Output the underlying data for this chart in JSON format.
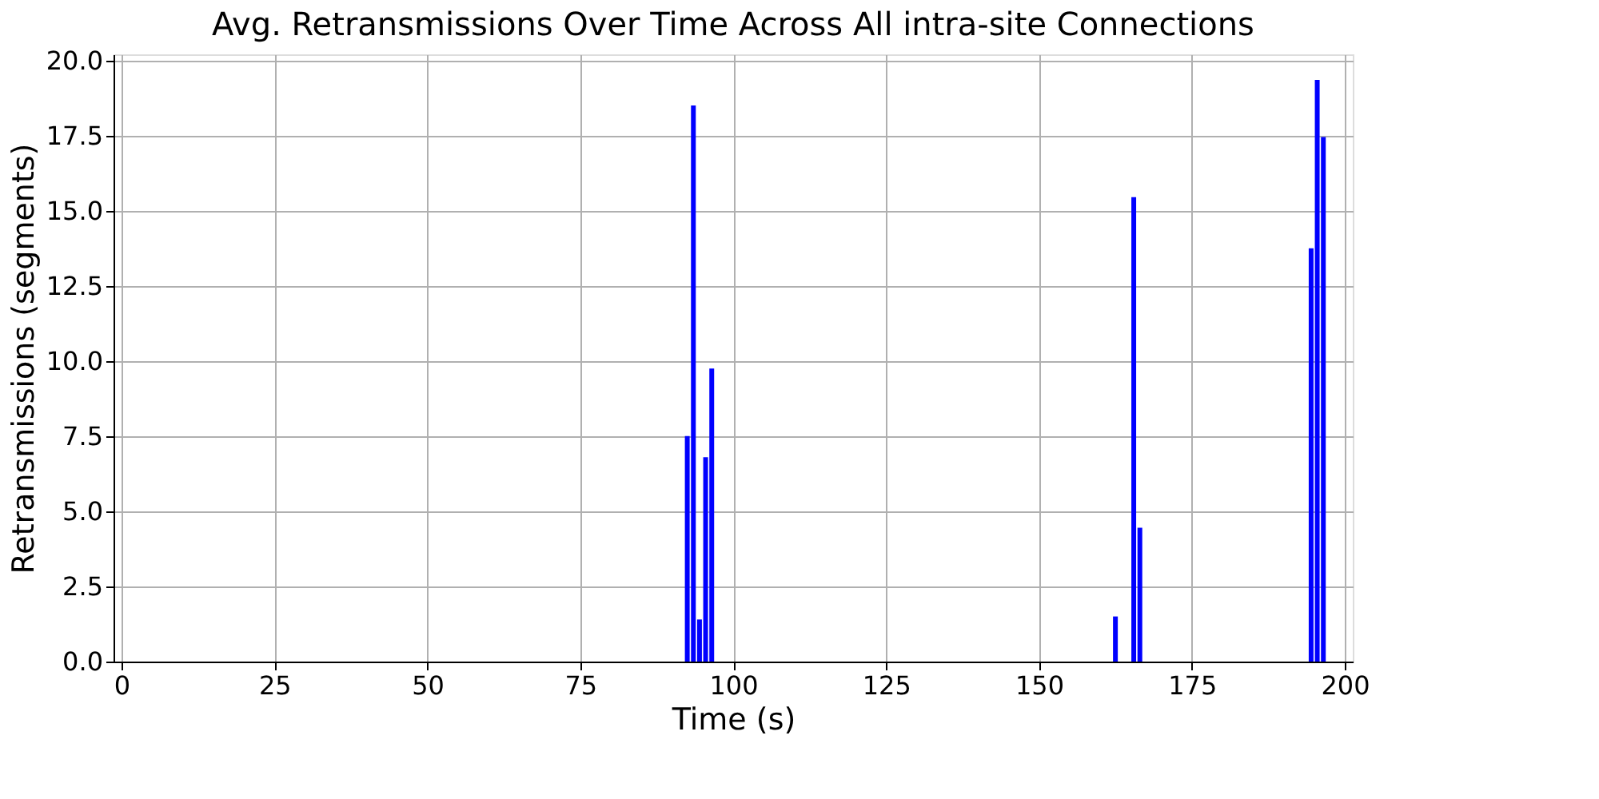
{
  "chart_data": {
    "type": "bar",
    "title": "Avg. Retransmissions Over Time Across All intra-site Connections",
    "xlabel": "Time (s)",
    "ylabel": "Retransmissions (segments)",
    "x": [
      92.5,
      93.5,
      94.5,
      95.5,
      96.5,
      162.5,
      165.5,
      166.5,
      194.5,
      195.5,
      196.5
    ],
    "values": [
      7.5,
      18.5,
      1.4,
      6.8,
      9.75,
      1.5,
      15.45,
      4.45,
      13.75,
      19.35,
      17.45
    ],
    "color": "#0000ff",
    "xlim": [
      0,
      200
    ],
    "xticks": [
      0,
      25,
      50,
      75,
      100,
      125,
      150,
      175,
      200
    ],
    "ylim": [
      0,
      20.2
    ],
    "yticks": [
      {
        "value": 0,
        "label": "0.0"
      },
      {
        "value": 2.5,
        "label": "2.5"
      },
      {
        "value": 5,
        "label": "5.0"
      },
      {
        "value": 7.5,
        "label": "7.5"
      },
      {
        "value": 10,
        "label": "10.0"
      },
      {
        "value": 12.5,
        "label": "12.5"
      },
      {
        "value": 15,
        "label": "15.0"
      },
      {
        "value": 17.5,
        "label": "17.5"
      },
      {
        "value": 20,
        "label": "20.0"
      }
    ],
    "grid": true
  }
}
